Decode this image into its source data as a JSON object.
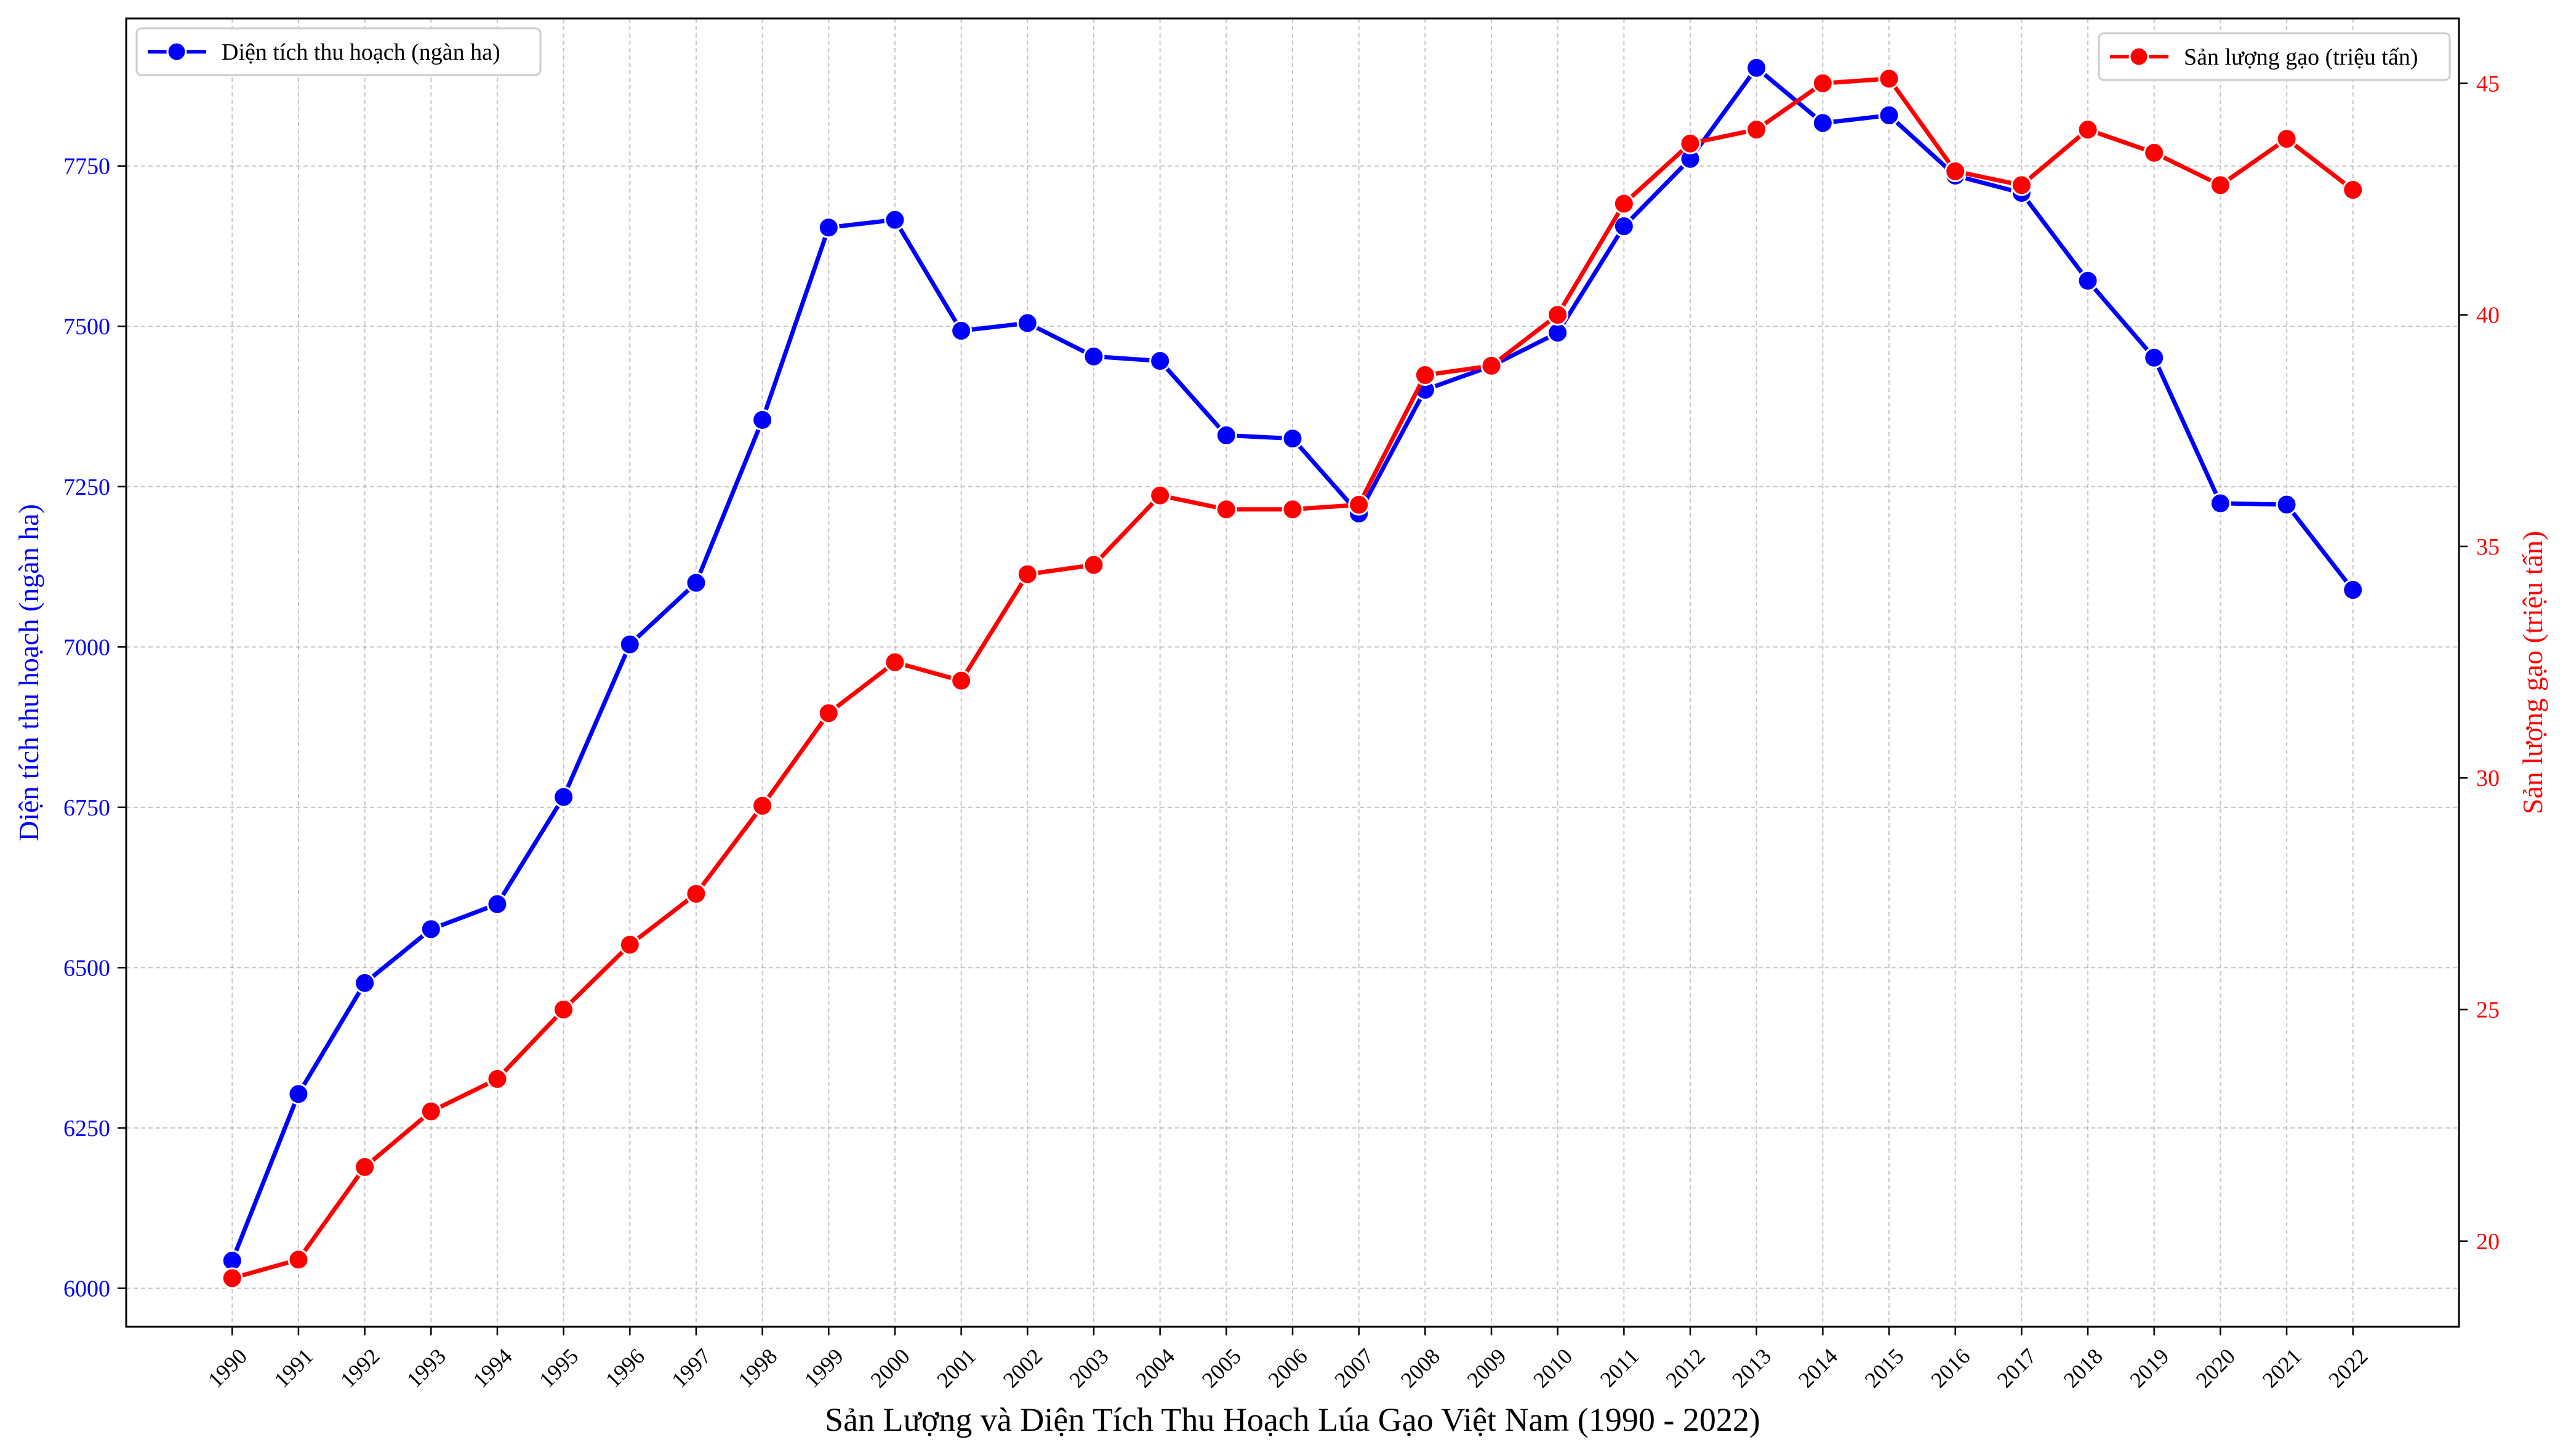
{
  "chart_data": {
    "type": "line",
    "xlabel": "Sản Lượng và Diện Tích Thu Hoạch Lúa Gạo Việt Nam (1990 - 2022)",
    "x": [
      1990,
      1991,
      1992,
      1993,
      1994,
      1995,
      1996,
      1997,
      1998,
      1999,
      2000,
      2001,
      2002,
      2003,
      2004,
      2005,
      2006,
      2007,
      2008,
      2009,
      2010,
      2011,
      2012,
      2013,
      2014,
      2015,
      2016,
      2017,
      2018,
      2019,
      2020,
      2021,
      2022
    ],
    "y_left": {
      "label": "Diện tích thu hoạch (ngàn ha)",
      "ticks": [
        6000,
        6250,
        6500,
        6750,
        7000,
        7250,
        7500,
        7750
      ],
      "ylim": [
        5940,
        7980
      ],
      "color": "#0000ff"
    },
    "y_right": {
      "label": "Sản lượng gạo (triệu tấn)",
      "ticks": [
        20,
        25,
        30,
        35,
        40,
        45
      ],
      "ylim": [
        18.15,
        46.4
      ],
      "color": "#ff0000"
    },
    "series": [
      {
        "name": "Diện tích thu hoạch (ngàn ha)",
        "axis": "left",
        "color": "#0000ff",
        "values": [
          6043,
          6303,
          6476,
          6560,
          6599,
          6766,
          7004,
          7100,
          7354,
          7654,
          7666,
          7493,
          7505,
          7453,
          7446,
          7330,
          7325,
          7208,
          7401,
          7438,
          7490,
          7656,
          7761,
          7903,
          7817,
          7829,
          7735,
          7708,
          7571,
          7451,
          7224,
          7222,
          7089
        ]
      },
      {
        "name": "Sản lượng gạo (triệu tấn)",
        "axis": "right",
        "color": "#ff0000",
        "values": [
          19.2,
          19.6,
          21.6,
          22.8,
          23.5,
          25.0,
          26.4,
          27.5,
          29.4,
          31.4,
          32.5,
          32.1,
          34.4,
          34.6,
          36.1,
          35.8,
          35.8,
          35.9,
          38.7,
          38.9,
          40.0,
          42.4,
          43.7,
          44.0,
          45.0,
          45.1,
          43.1,
          42.8,
          44.0,
          43.5,
          42.8,
          43.8,
          42.7
        ]
      }
    ],
    "grid": true,
    "legend_left_position": "top-left",
    "legend_right_position": "top-right"
  }
}
